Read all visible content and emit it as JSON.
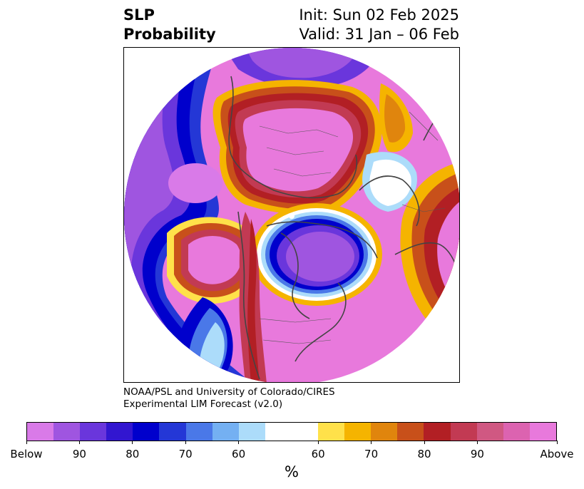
{
  "header": {
    "left_line1": "SLP",
    "left_line2": "Probability",
    "right_line1": "Init: Sun 02 Feb 2025",
    "right_line2": "Valid: 31 Jan – 06 Feb"
  },
  "credit": {
    "line1": "NOAA/PSL and University of Colorado/CIRES",
    "line2": "Experimental LIM Forecast (v2.0)"
  },
  "colorbar": {
    "colors": [
      "#d97ae8",
      "#9f55e0",
      "#6a36dc",
      "#3216d0",
      "#0000cc",
      "#2437d6",
      "#4a78e8",
      "#74b0f2",
      "#acdcfa",
      "#ffffff",
      "#ffe14a",
      "#f5b400",
      "#e0850d",
      "#c8501a",
      "#b21f24",
      "#c23a53",
      "#d05882",
      "#dc63b0",
      "#e879dc"
    ],
    "labels": [
      "Below",
      "90",
      "80",
      "70",
      "60",
      "60",
      "70",
      "80",
      "90",
      "Above"
    ],
    "units": "%"
  },
  "map": {
    "projection": "north polar stereographic",
    "above_color": "#e879dc",
    "below_color": "#0000cc"
  }
}
